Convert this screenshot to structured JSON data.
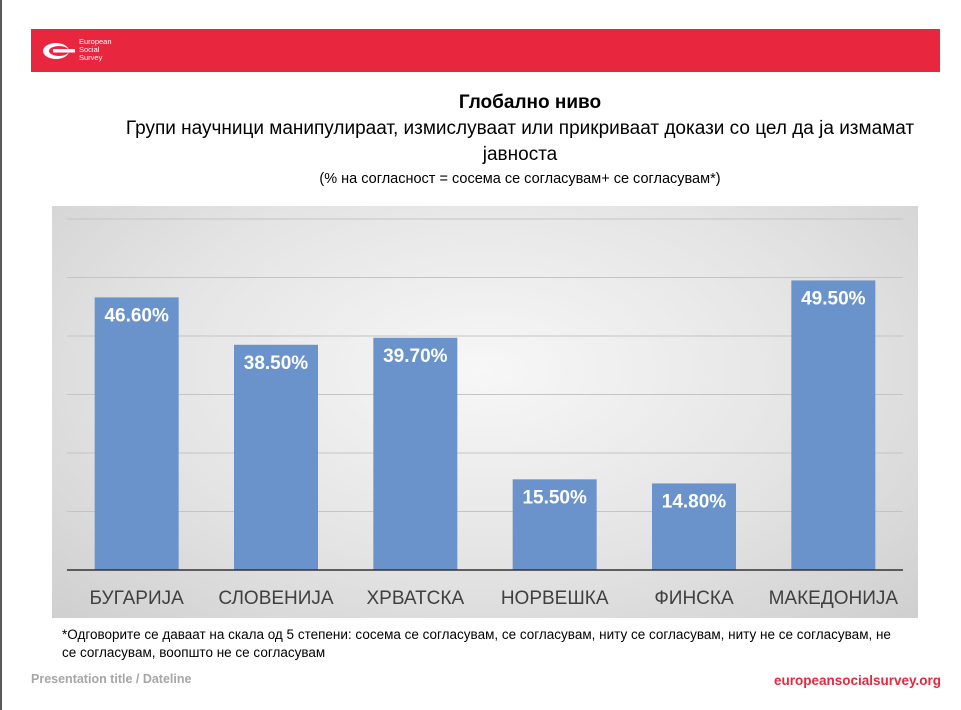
{
  "header": {
    "logo_text": "European\nSocial\nSurvey",
    "band_color": "#e8273f"
  },
  "titles": {
    "title": "Глобално ниво",
    "subtitle": "Групи научници манипулираат, измислуваат или прикриваат докази со цел да ја измамат јавноста",
    "note": "(% на согласност = сосема се согласувам+ се согласувам*)"
  },
  "chart_data": {
    "type": "bar",
    "categories": [
      "БУГАРИЈА",
      "СЛОВЕНИЈА",
      "ХРВАТСКА",
      "НОРВЕШКА",
      "ФИНСКА",
      "МАКЕДОНИЈА"
    ],
    "values": [
      46.6,
      38.5,
      39.7,
      15.5,
      14.8,
      49.5
    ],
    "data_labels": [
      "46.60%",
      "38.50%",
      "39.70%",
      "15.50%",
      "14.80%",
      "49.50%"
    ],
    "ylim": [
      0,
      60
    ],
    "grid": true,
    "legend": "none",
    "bar_color": "#6a93cc"
  },
  "footnote": "*Одговорите се даваат на скала од 5 степени: сосема се согласувам, се согласувам, ниту се согласувам, ниту не се согласувам, не се согласувам, воопшто не се согласувам",
  "footer": {
    "left": "Presentation title / Dateline",
    "right": "europeansocialsurvey.org"
  }
}
